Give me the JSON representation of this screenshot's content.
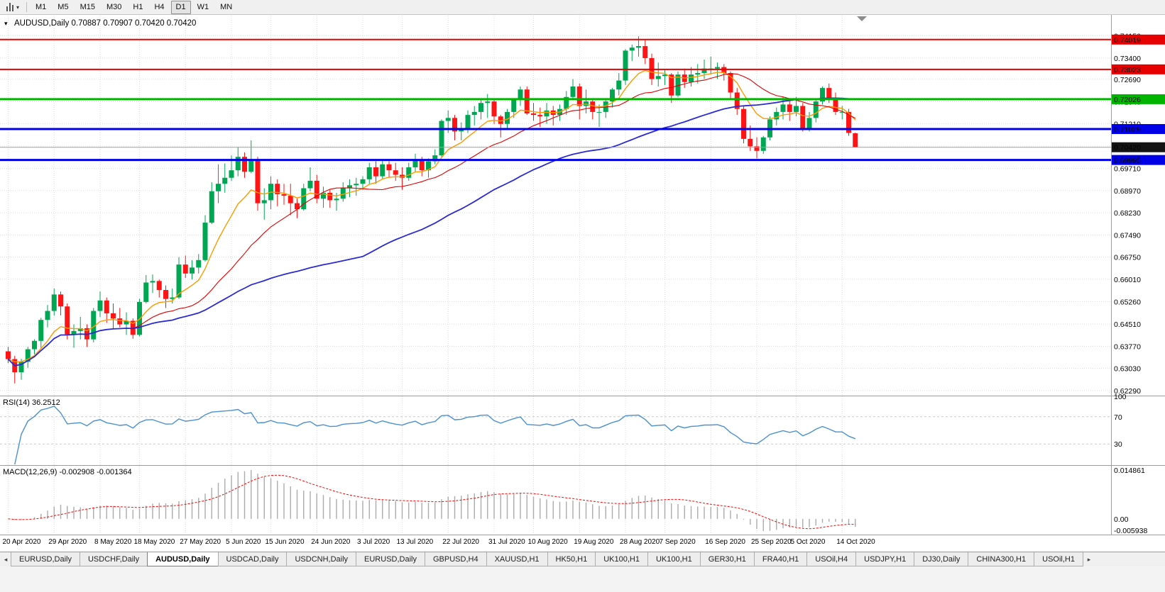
{
  "toolbar": {
    "menu_caret": "▾",
    "timeframes": [
      "M1",
      "M5",
      "M15",
      "M30",
      "H1",
      "H4",
      "D1",
      "W1",
      "MN"
    ],
    "active_timeframe": "D1"
  },
  "chart_header": {
    "title": "AUDUSD,Daily  0.70887 0.70907 0.70420 0.70420",
    "menu_caret": "▾",
    "symbol": "AUDUSD",
    "period": "Daily",
    "open": "0.70887",
    "high": "0.70907",
    "low": "0.70420",
    "close": "0.70420"
  },
  "chart_data": {
    "type": "candlestick",
    "symbol": "AUDUSD",
    "timeframe": "Daily",
    "bull_color": "#00A651",
    "bear_color": "#FE1414",
    "grid_color": "#DCDCDC",
    "price_range": {
      "top": 0.7482,
      "bottom": 0.6212
    },
    "y_axis_ticks": [
      "0.74150",
      "0.73400",
      "0.72690",
      "0.71940",
      "0.71210",
      "0.70460",
      "0.69710",
      "0.68970",
      "0.68230",
      "0.67490",
      "0.66750",
      "0.66010",
      "0.65260",
      "0.64510",
      "0.63770",
      "0.63030",
      "0.62290"
    ],
    "x_tick_labels": [
      "20 Apr 2020",
      "29 Apr 2020",
      "8 May 2020",
      "18 May 2020",
      "27 May 2020",
      "5 Jun 2020",
      "15 Jun 2020",
      "24 Jun 2020",
      "3 Jul 2020",
      "13 Jul 2020",
      "22 Jul 2020",
      "31 Jul 2020",
      "10 Aug 2020",
      "19 Aug 2020",
      "28 Aug 2020",
      "7 Sep 2020",
      "16 Sep 2020",
      "25 Sep 2020",
      "5 Oct 2020",
      "14 Oct 2020"
    ],
    "x_tick_indices": [
      0,
      7,
      14,
      20,
      27,
      34,
      40,
      47,
      54,
      60,
      67,
      74,
      80,
      87,
      94,
      100,
      107,
      114,
      120,
      127
    ],
    "horizontal_lines": [
      {
        "price": 0.74019,
        "label": "0.74019",
        "color": "#E60000",
        "width": 2
      },
      {
        "price": 0.73023,
        "label": "0.73023",
        "color": "#E60000",
        "width": 2
      },
      {
        "price": 0.72026,
        "label": "0.72026",
        "color": "#00B400",
        "width": 3
      },
      {
        "price": 0.71029,
        "label": "0.71029",
        "color": "#0000E6",
        "width": 3
      },
      {
        "price": 0.69995,
        "label": "0.69995",
        "color": "#0000E6",
        "width": 3
      }
    ],
    "current_price_line": {
      "price": 0.7042,
      "label": "0.70420",
      "line_color": "#A0A0A0",
      "box_color": "#141414"
    },
    "moving_averages": [
      {
        "name": "ma-fast",
        "method": "ema",
        "period": 9,
        "color": "#FF9900",
        "width": 1.4
      },
      {
        "name": "ma-mid",
        "method": "sma",
        "period": 20,
        "color": "#E00000",
        "width": 1.1
      },
      {
        "name": "ma-slow",
        "method": "sma",
        "period": 55,
        "color": "#2A2AD4",
        "width": 1.8
      }
    ],
    "candles": [
      [
        0.636,
        0.6375,
        0.632,
        0.6334
      ],
      [
        0.6334,
        0.6345,
        0.6253,
        0.629
      ],
      [
        0.629,
        0.6335,
        0.6265,
        0.6325
      ],
      [
        0.6325,
        0.6375,
        0.6305,
        0.6367
      ],
      [
        0.6367,
        0.64,
        0.635,
        0.6395
      ],
      [
        0.6395,
        0.6472,
        0.637,
        0.6465
      ],
      [
        0.6465,
        0.6515,
        0.644,
        0.6495
      ],
      [
        0.6495,
        0.657,
        0.648,
        0.655
      ],
      [
        0.655,
        0.656,
        0.648,
        0.651
      ],
      [
        0.651,
        0.652,
        0.64,
        0.6417
      ],
      [
        0.6417,
        0.645,
        0.6372,
        0.6428
      ],
      [
        0.6428,
        0.6475,
        0.64,
        0.6437
      ],
      [
        0.6437,
        0.645,
        0.6375,
        0.64
      ],
      [
        0.64,
        0.6505,
        0.639,
        0.6495
      ],
      [
        0.6495,
        0.656,
        0.6475,
        0.653
      ],
      [
        0.653,
        0.654,
        0.6455,
        0.6487
      ],
      [
        0.6487,
        0.652,
        0.6435,
        0.647
      ],
      [
        0.647,
        0.6505,
        0.644,
        0.645
      ],
      [
        0.645,
        0.649,
        0.6415,
        0.6462
      ],
      [
        0.6462,
        0.647,
        0.6402,
        0.6415
      ],
      [
        0.6415,
        0.6535,
        0.641,
        0.6525
      ],
      [
        0.6525,
        0.6615,
        0.652,
        0.659
      ],
      [
        0.659,
        0.6617,
        0.6555,
        0.6595
      ],
      [
        0.6595,
        0.66,
        0.654,
        0.6565
      ],
      [
        0.6565,
        0.658,
        0.6505,
        0.6535
      ],
      [
        0.6535,
        0.657,
        0.652,
        0.654
      ],
      [
        0.654,
        0.6675,
        0.6535,
        0.665
      ],
      [
        0.665,
        0.668,
        0.6605,
        0.662
      ],
      [
        0.662,
        0.6665,
        0.66,
        0.664
      ],
      [
        0.664,
        0.6685,
        0.662,
        0.6665
      ],
      [
        0.6665,
        0.6815,
        0.666,
        0.679
      ],
      [
        0.679,
        0.6925,
        0.6785,
        0.6895
      ],
      [
        0.6895,
        0.6985,
        0.6855,
        0.692
      ],
      [
        0.692,
        0.6988,
        0.689,
        0.694
      ],
      [
        0.694,
        0.7015,
        0.693,
        0.6965
      ],
      [
        0.6965,
        0.7043,
        0.6945,
        0.701
      ],
      [
        0.701,
        0.7025,
        0.694,
        0.696
      ],
      [
        0.696,
        0.7065,
        0.6955,
        0.7
      ],
      [
        0.7,
        0.701,
        0.683,
        0.6855
      ],
      [
        0.6855,
        0.6905,
        0.68,
        0.6865
      ],
      [
        0.6865,
        0.6945,
        0.6835,
        0.692
      ],
      [
        0.692,
        0.6935,
        0.6845,
        0.6885
      ],
      [
        0.6885,
        0.692,
        0.685,
        0.688
      ],
      [
        0.688,
        0.692,
        0.6815,
        0.6855
      ],
      [
        0.6855,
        0.687,
        0.6805,
        0.6835
      ],
      [
        0.6835,
        0.692,
        0.683,
        0.6905
      ],
      [
        0.6905,
        0.6975,
        0.6895,
        0.693
      ],
      [
        0.693,
        0.695,
        0.6855,
        0.687
      ],
      [
        0.687,
        0.691,
        0.684,
        0.689
      ],
      [
        0.689,
        0.69,
        0.684,
        0.6865
      ],
      [
        0.6865,
        0.689,
        0.683,
        0.687
      ],
      [
        0.687,
        0.6925,
        0.686,
        0.6905
      ],
      [
        0.6905,
        0.6935,
        0.6875,
        0.6915
      ],
      [
        0.6915,
        0.694,
        0.688,
        0.692
      ],
      [
        0.692,
        0.6945,
        0.69,
        0.6935
      ],
      [
        0.6935,
        0.699,
        0.692,
        0.6975
      ],
      [
        0.6975,
        0.6995,
        0.692,
        0.6945
      ],
      [
        0.6945,
        0.7,
        0.6935,
        0.6985
      ],
      [
        0.6985,
        0.6995,
        0.694,
        0.6965
      ],
      [
        0.6965,
        0.699,
        0.693,
        0.695
      ],
      [
        0.695,
        0.6975,
        0.69,
        0.694
      ],
      [
        0.694,
        0.699,
        0.693,
        0.6975
      ],
      [
        0.6975,
        0.702,
        0.696,
        0.7
      ],
      [
        0.7,
        0.701,
        0.6945,
        0.6965
      ],
      [
        0.6965,
        0.7005,
        0.694,
        0.6995
      ],
      [
        0.6995,
        0.7035,
        0.6985,
        0.7015
      ],
      [
        0.7015,
        0.7135,
        0.701,
        0.713
      ],
      [
        0.713,
        0.7165,
        0.709,
        0.714
      ],
      [
        0.714,
        0.715,
        0.7065,
        0.7095
      ],
      [
        0.7095,
        0.7125,
        0.7065,
        0.7105
      ],
      [
        0.7105,
        0.7165,
        0.709,
        0.715
      ],
      [
        0.715,
        0.718,
        0.7115,
        0.716
      ],
      [
        0.716,
        0.72,
        0.7135,
        0.719
      ],
      [
        0.719,
        0.722,
        0.714,
        0.7195
      ],
      [
        0.7195,
        0.72,
        0.712,
        0.7145
      ],
      [
        0.7145,
        0.715,
        0.7075,
        0.712
      ],
      [
        0.712,
        0.717,
        0.71,
        0.716
      ],
      [
        0.716,
        0.7205,
        0.714,
        0.72
      ],
      [
        0.72,
        0.7245,
        0.718,
        0.7235
      ],
      [
        0.7235,
        0.7245,
        0.715,
        0.7155
      ],
      [
        0.7155,
        0.719,
        0.713,
        0.715
      ],
      [
        0.715,
        0.7175,
        0.711,
        0.7145
      ],
      [
        0.7145,
        0.719,
        0.712,
        0.7165
      ],
      [
        0.7165,
        0.718,
        0.7115,
        0.715
      ],
      [
        0.715,
        0.7185,
        0.713,
        0.717
      ],
      [
        0.717,
        0.723,
        0.715,
        0.721
      ],
      [
        0.721,
        0.727,
        0.72,
        0.7245
      ],
      [
        0.7245,
        0.7255,
        0.7135,
        0.718
      ],
      [
        0.718,
        0.7235,
        0.7155,
        0.7195
      ],
      [
        0.7195,
        0.7205,
        0.7135,
        0.716
      ],
      [
        0.716,
        0.7185,
        0.711,
        0.716
      ],
      [
        0.716,
        0.7205,
        0.714,
        0.7195
      ],
      [
        0.7195,
        0.724,
        0.7175,
        0.7235
      ],
      [
        0.7235,
        0.729,
        0.7215,
        0.7265
      ],
      [
        0.7265,
        0.737,
        0.725,
        0.7365
      ],
      [
        0.7365,
        0.7385,
        0.733,
        0.7375
      ],
      [
        0.7375,
        0.7413,
        0.7345,
        0.738
      ],
      [
        0.738,
        0.74,
        0.732,
        0.734
      ],
      [
        0.734,
        0.7355,
        0.725,
        0.727
      ],
      [
        0.727,
        0.7325,
        0.7245,
        0.728
      ],
      [
        0.728,
        0.73,
        0.725,
        0.7285
      ],
      [
        0.7285,
        0.729,
        0.719,
        0.7215
      ],
      [
        0.7215,
        0.7295,
        0.721,
        0.7285
      ],
      [
        0.7285,
        0.7305,
        0.724,
        0.726
      ],
      [
        0.726,
        0.731,
        0.7245,
        0.7285
      ],
      [
        0.7285,
        0.732,
        0.7255,
        0.729
      ],
      [
        0.729,
        0.7335,
        0.727,
        0.7305
      ],
      [
        0.7305,
        0.7345,
        0.7285,
        0.7305
      ],
      [
        0.7305,
        0.7325,
        0.727,
        0.731
      ],
      [
        0.731,
        0.732,
        0.7265,
        0.729
      ],
      [
        0.729,
        0.7295,
        0.72,
        0.7225
      ],
      [
        0.7225,
        0.724,
        0.715,
        0.717
      ],
      [
        0.717,
        0.718,
        0.7055,
        0.707
      ],
      [
        0.707,
        0.7115,
        0.703,
        0.7045
      ],
      [
        0.7045,
        0.7075,
        0.7005,
        0.703
      ],
      [
        0.703,
        0.708,
        0.702,
        0.7075
      ],
      [
        0.7075,
        0.7145,
        0.7065,
        0.7135
      ],
      [
        0.7135,
        0.7175,
        0.7115,
        0.716
      ],
      [
        0.716,
        0.721,
        0.7135,
        0.7185
      ],
      [
        0.7185,
        0.72,
        0.713,
        0.716
      ],
      [
        0.716,
        0.721,
        0.7145,
        0.718
      ],
      [
        0.718,
        0.719,
        0.7095,
        0.7105
      ],
      [
        0.7105,
        0.716,
        0.7095,
        0.714
      ],
      [
        0.714,
        0.72,
        0.7125,
        0.7195
      ],
      [
        0.7195,
        0.7245,
        0.7185,
        0.724
      ],
      [
        0.724,
        0.7255,
        0.719,
        0.7205
      ],
      [
        0.7205,
        0.7225,
        0.715,
        0.716
      ],
      [
        0.716,
        0.718,
        0.7135,
        0.716
      ],
      [
        0.716,
        0.717,
        0.708,
        0.709
      ],
      [
        0.70887,
        0.70907,
        0.7042,
        0.7042
      ]
    ],
    "indicators": [
      {
        "type": "rsi",
        "label": "RSI(14) 36.2512",
        "period": 14,
        "value": 36.2512,
        "levels": [
          70,
          30
        ],
        "axis_labels": [
          "100",
          "70",
          "30"
        ],
        "line_color": "#4A90D2",
        "level_color": "#C8C8C8"
      },
      {
        "type": "macd",
        "label": "MACD(12,26,9) -0.002908 -0.001364",
        "fast": 12,
        "slow": 26,
        "signal": 9,
        "macd_value": -0.002908,
        "signal_value": -0.001364,
        "axis_labels": [
          "0.014861",
          "0.00",
          "-0.005938"
        ],
        "histogram_color": "#ABABAB",
        "signal_color": "#FF0000"
      }
    ]
  },
  "tabs": {
    "scroll_left_icon": "◂",
    "scroll_right_icon": "▸",
    "active_index": 2,
    "items": [
      "EURUSD,Daily",
      "USDCHF,Daily",
      "AUDUSD,Daily",
      "USDCAD,Daily",
      "USDCNH,Daily",
      "EURUSD,Daily",
      "GBPUSD,H4",
      "XAUUSD,H1",
      "HK50,H1",
      "UK100,H1",
      "UK100,H1",
      "GER30,H1",
      "FRA40,H1",
      "USOil,H4",
      "USDJPY,H1",
      "DJ30,Daily",
      "CHINA300,H1",
      "USOil,H1"
    ]
  }
}
